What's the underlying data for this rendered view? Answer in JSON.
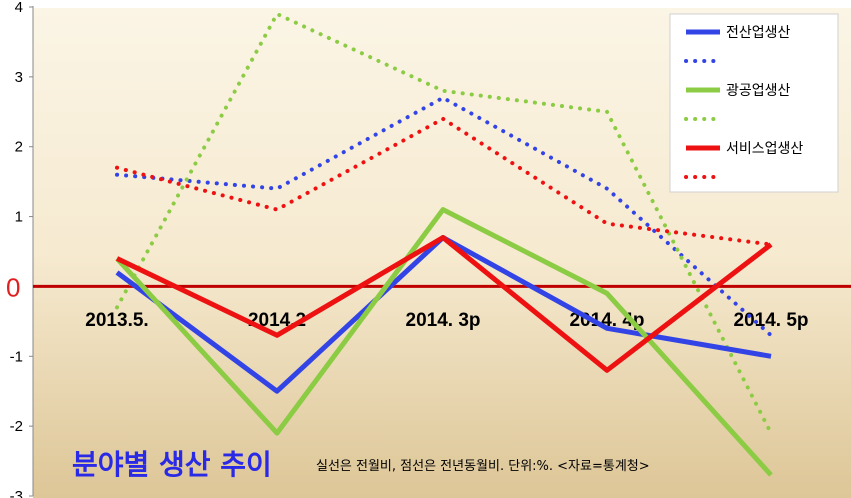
{
  "chart_data": {
    "type": "line",
    "title": "분야별 생산 추이",
    "note": "실선은 전월비, 점선은 전년동월비.  단위:%.   <자료=통계청>",
    "categories": [
      "2013.5.",
      "2014.2",
      "2014. 3p",
      "2014. 4p",
      "2014. 5p"
    ],
    "ylim": [
      -3,
      4
    ],
    "yticks": [
      "4",
      "3",
      "2",
      "1",
      "0",
      "-1",
      "-2",
      "-3"
    ],
    "zero_label": "0",
    "zero_line_color": "#c00000",
    "legend_position": "top-right",
    "series": [
      {
        "name": "전산업생산",
        "style": "solid",
        "color": "#3344e6",
        "values": [
          0.2,
          -1.5,
          0.7,
          -0.6,
          -1.0
        ]
      },
      {
        "name": "",
        "style": "dotted",
        "color": "#3344e6",
        "values": [
          1.6,
          1.4,
          2.7,
          1.4,
          -0.7
        ]
      },
      {
        "name": "광공업생산",
        "style": "solid",
        "color": "#8ccc44",
        "values": [
          0.4,
          -2.1,
          1.1,
          -0.1,
          -2.7
        ]
      },
      {
        "name": "",
        "style": "dotted",
        "color": "#8ccc44",
        "values": [
          -0.3,
          3.9,
          2.8,
          2.5,
          -2.1
        ]
      },
      {
        "name": "서비스업생산",
        "style": "solid",
        "color": "#ee1111",
        "values": [
          0.4,
          -0.7,
          0.7,
          -1.2,
          0.6
        ]
      },
      {
        "name": "",
        "style": "dotted",
        "color": "#ee1111",
        "values": [
          1.7,
          1.1,
          2.4,
          0.9,
          0.6
        ]
      }
    ]
  }
}
